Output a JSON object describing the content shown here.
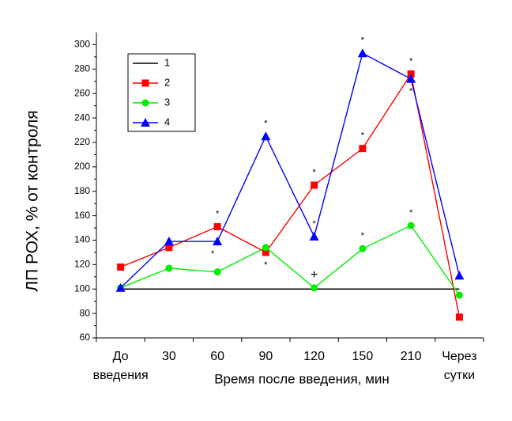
{
  "chart_data": {
    "type": "line",
    "x_label": "Время после введения, мин",
    "y_label": "ЛП РОХ, % от контроля",
    "categories": [
      "До введения",
      "30",
      "60",
      "90",
      "120",
      "150",
      "210",
      "Через сутки"
    ],
    "ylim": [
      60,
      310
    ],
    "yticks": [
      60,
      80,
      100,
      120,
      140,
      160,
      180,
      200,
      220,
      240,
      260,
      280,
      300
    ],
    "series": [
      {
        "name": "1",
        "color": "#000000",
        "marker": "none",
        "values": [
          100,
          100,
          100,
          100,
          100,
          100,
          100,
          100
        ]
      },
      {
        "name": "2",
        "color": "#ff0000",
        "marker": "square",
        "values": [
          118,
          134,
          151,
          130,
          185,
          215,
          276,
          77
        ],
        "value_labels": [
          null,
          null,
          "*",
          "*",
          "*",
          "*",
          "*",
          null
        ]
      },
      {
        "name": "3",
        "color": "#00ee00",
        "marker": "circle",
        "values": [
          101,
          117,
          114,
          134,
          101,
          133,
          152,
          95
        ],
        "value_labels": [
          null,
          null,
          null,
          null,
          "+",
          "*",
          "*",
          null
        ]
      },
      {
        "name": "4",
        "color": "#0000ff",
        "marker": "triangle",
        "values": [
          101,
          139,
          139,
          225,
          143,
          293,
          272,
          111
        ],
        "value_labels": [
          null,
          null,
          "*",
          "*",
          "*",
          "*",
          "*",
          null
        ]
      }
    ]
  }
}
